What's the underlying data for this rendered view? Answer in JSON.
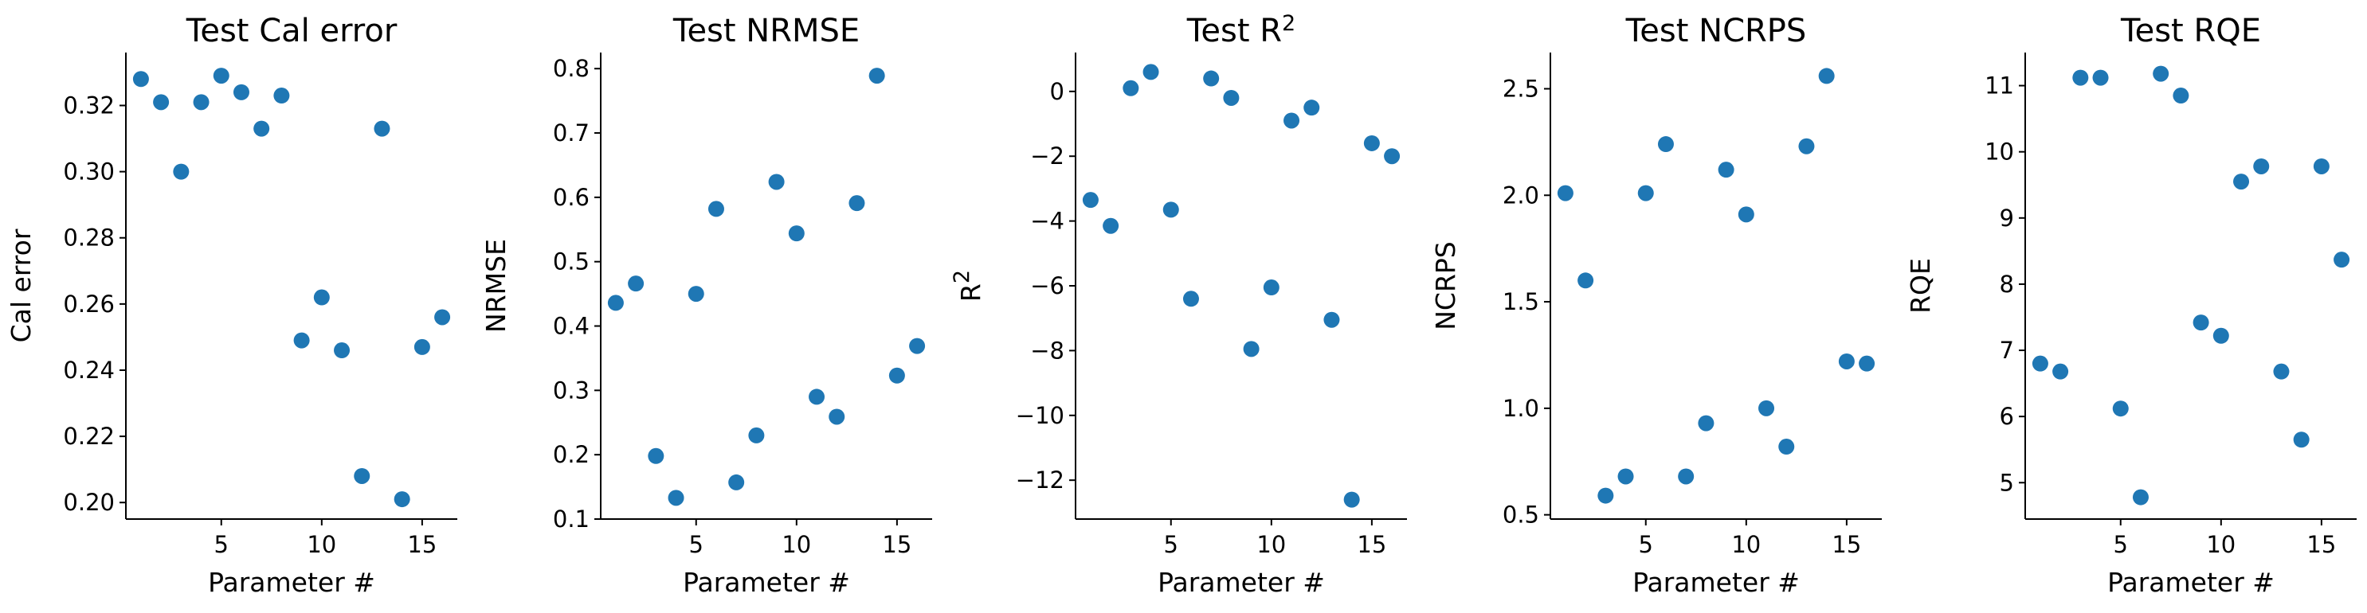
{
  "chart_data": [
    {
      "type": "scatter",
      "title": "Test Cal error",
      "title_sup": "",
      "xlabel": "Parameter #",
      "ylabel": "Cal error",
      "ylabel_sup": "",
      "xlim": [
        0.25,
        16.75
      ],
      "ylim": [
        0.195,
        0.336
      ],
      "xticks": [
        5,
        10,
        15
      ],
      "yticks": [
        0.2,
        0.22,
        0.24,
        0.26,
        0.28,
        0.3,
        0.32
      ],
      "ytick_labels": [
        "0.20",
        "0.22",
        "0.24",
        "0.26",
        "0.28",
        "0.30",
        "0.32"
      ],
      "x": [
        1,
        2,
        3,
        4,
        5,
        6,
        7,
        8,
        9,
        10,
        11,
        12,
        13,
        14,
        15,
        16
      ],
      "y": [
        0.328,
        0.321,
        0.3,
        0.321,
        0.329,
        0.324,
        0.313,
        0.323,
        0.249,
        0.262,
        0.246,
        0.208,
        0.313,
        0.201,
        0.247,
        0.256
      ],
      "color": "#1f77b4",
      "grid": false
    },
    {
      "type": "scatter",
      "title": "Test NRMSE",
      "title_sup": "",
      "xlabel": "Parameter #",
      "ylabel": "NRMSE",
      "ylabel_sup": "",
      "xlim": [
        0.25,
        16.75
      ],
      "ylim": [
        0.1,
        0.825
      ],
      "xticks": [
        5,
        10,
        15
      ],
      "yticks": [
        0.1,
        0.2,
        0.3,
        0.4,
        0.5,
        0.6,
        0.7,
        0.8
      ],
      "ytick_labels": [
        "0.1",
        "0.2",
        "0.3",
        "0.4",
        "0.5",
        "0.6",
        "0.7",
        "0.8"
      ],
      "x": [
        1,
        2,
        3,
        4,
        5,
        6,
        7,
        8,
        9,
        10,
        11,
        12,
        13,
        14,
        15,
        16
      ],
      "y": [
        0.436,
        0.466,
        0.198,
        0.133,
        0.45,
        0.582,
        0.157,
        0.23,
        0.624,
        0.544,
        0.29,
        0.259,
        0.591,
        0.789,
        0.323,
        0.369
      ],
      "color": "#1f77b4",
      "grid": false
    },
    {
      "type": "scatter",
      "title": "Test R",
      "title_sup": "2",
      "xlabel": "Parameter #",
      "ylabel": "R",
      "ylabel_sup": "2",
      "xlim": [
        0.25,
        16.75
      ],
      "ylim": [
        -13.2,
        1.2
      ],
      "xticks": [
        5,
        10,
        15
      ],
      "yticks": [
        -12,
        -10,
        -8,
        -6,
        -4,
        -2,
        0
      ],
      "ytick_labels": [
        "−12",
        "−10",
        "−8",
        "−6",
        "−4",
        "−2",
        "0"
      ],
      "x": [
        1,
        2,
        3,
        4,
        5,
        6,
        7,
        8,
        9,
        10,
        11,
        12,
        13,
        14,
        15,
        16
      ],
      "y": [
        -3.35,
        -4.15,
        0.1,
        0.6,
        -3.65,
        -6.4,
        0.4,
        -0.2,
        -7.95,
        -6.05,
        -0.9,
        -0.5,
        -7.05,
        -12.6,
        -1.6,
        -2.0
      ],
      "color": "#1f77b4",
      "grid": false
    },
    {
      "type": "scatter",
      "title": "Test NCRPS",
      "title_sup": "",
      "xlabel": "Parameter #",
      "ylabel": "NCRPS",
      "ylabel_sup": "",
      "xlim": [
        0.25,
        16.75
      ],
      "ylim": [
        0.48,
        2.67
      ],
      "xticks": [
        5,
        10,
        15
      ],
      "yticks": [
        0.5,
        1.0,
        1.5,
        2.0,
        2.5
      ],
      "ytick_labels": [
        "0.5",
        "1.0",
        "1.5",
        "2.0",
        "2.5"
      ],
      "x": [
        1,
        2,
        3,
        4,
        5,
        6,
        7,
        8,
        9,
        10,
        11,
        12,
        13,
        14,
        15,
        16
      ],
      "y": [
        2.01,
        1.6,
        0.59,
        0.68,
        2.01,
        2.24,
        0.68,
        0.93,
        2.12,
        1.91,
        1.0,
        0.82,
        2.23,
        2.56,
        1.22,
        1.21
      ],
      "color": "#1f77b4",
      "grid": false
    },
    {
      "type": "scatter",
      "title": "Test RQE",
      "title_sup": "",
      "xlabel": "Parameter #",
      "ylabel": "RQE",
      "ylabel_sup": "",
      "xlim": [
        0.25,
        16.75
      ],
      "ylim": [
        4.45,
        11.5
      ],
      "xticks": [
        5,
        10,
        15
      ],
      "yticks": [
        5,
        6,
        7,
        8,
        9,
        10,
        11
      ],
      "ytick_labels": [
        "5",
        "6",
        "7",
        "8",
        "9",
        "10",
        "11"
      ],
      "x": [
        1,
        2,
        3,
        4,
        5,
        6,
        7,
        8,
        9,
        10,
        11,
        12,
        13,
        14,
        15,
        16
      ],
      "y": [
        6.8,
        6.68,
        11.12,
        11.12,
        6.12,
        4.78,
        11.18,
        10.85,
        7.42,
        7.22,
        9.55,
        9.78,
        6.68,
        5.65,
        9.78,
        8.37
      ],
      "color": "#1f77b4",
      "grid": false
    }
  ]
}
